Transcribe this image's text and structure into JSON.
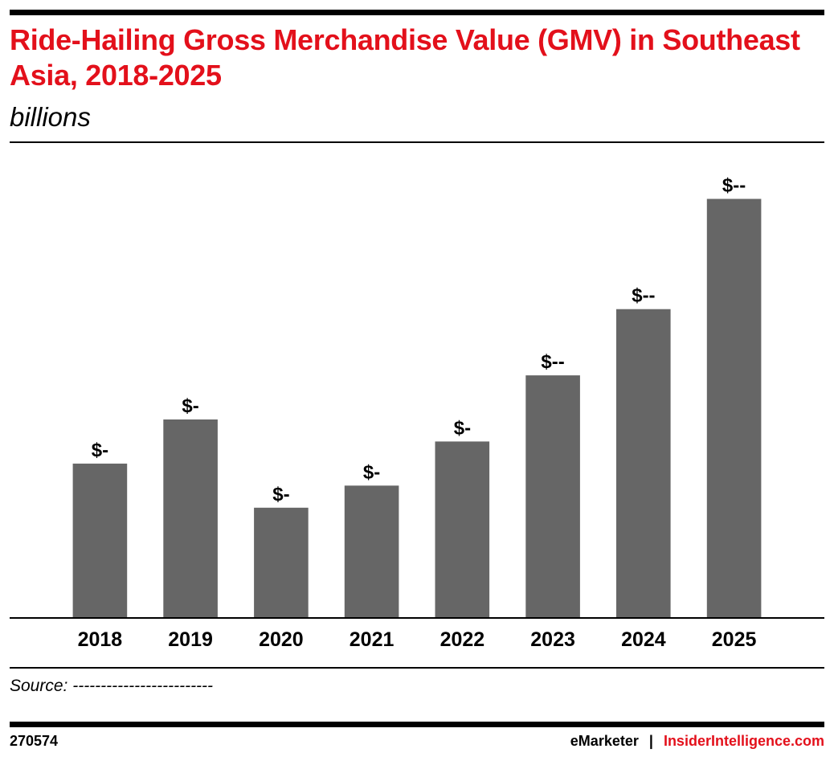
{
  "header": {
    "title": "Ride-Hailing Gross Merchandise Value (GMV) in Southeast Asia, 2018-2025",
    "subtitle": "billions"
  },
  "chart_data": {
    "type": "bar",
    "categories": [
      "2018",
      "2019",
      "2020",
      "2021",
      "2022",
      "2023",
      "2024",
      "2025"
    ],
    "values": [
      7.0,
      9.0,
      5.0,
      6.0,
      8.0,
      11.0,
      14.0,
      19.0
    ],
    "data_labels": [
      "$-",
      "$-",
      "$-",
      "$-",
      "$-",
      "$--",
      "$--",
      "$--"
    ],
    "ylim": [
      0,
      20
    ],
    "bar_color": "#666666",
    "grid": false,
    "legend": "none"
  },
  "footer": {
    "source": "Source: -------------------------",
    "chart_id": "270574",
    "brand_emarketer": "eMarketer",
    "separator": "|",
    "brand_insider": "InsiderIntelligence.com",
    "accent_color": "#e3101b"
  }
}
